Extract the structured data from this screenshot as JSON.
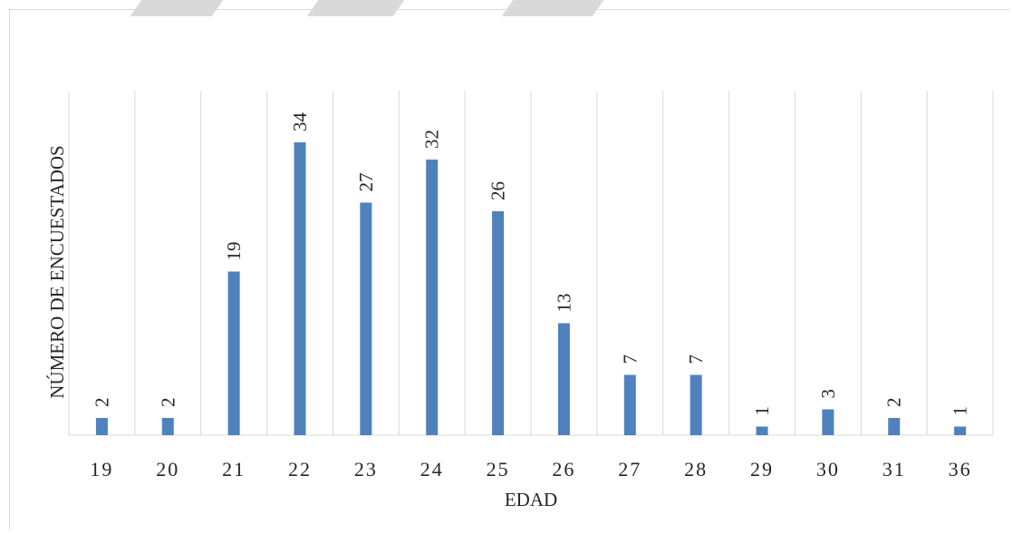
{
  "chart_data": {
    "type": "bar",
    "title": "",
    "xlabel": "EDAD",
    "ylabel": "NÚMERO DE ENCUESTADOS",
    "categories": [
      "19",
      "20",
      "21",
      "22",
      "23",
      "24",
      "25",
      "26",
      "27",
      "28",
      "29",
      "30",
      "31",
      "36"
    ],
    "values": [
      2,
      2,
      19,
      34,
      27,
      32,
      26,
      13,
      7,
      7,
      1,
      3,
      2,
      1
    ],
    "ylim": [
      0,
      34
    ],
    "grid": "vertical",
    "legend": "none",
    "bar_color": "#4f81bd",
    "grid_color": "#d9d9d9"
  }
}
